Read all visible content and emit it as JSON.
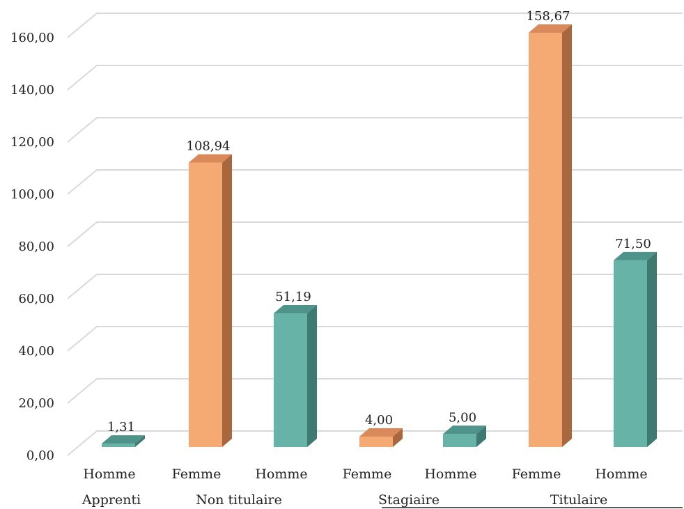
{
  "chart_data": {
    "type": "bar",
    "style": "3d-column",
    "y_ticks": [
      "0,00",
      "20,00",
      "40,00",
      "60,00",
      "80,00",
      "100,00",
      "120,00",
      "140,00",
      "160,00"
    ],
    "ylim": [
      0,
      160
    ],
    "grid": true,
    "groups": [
      {
        "label": "Apprenti",
        "bars": [
          {
            "category": "Homme",
            "value": 1.31,
            "label": "1,31"
          }
        ]
      },
      {
        "label": "Non titulaire",
        "bars": [
          {
            "category": "Femme",
            "value": 108.94,
            "label": "108,94"
          },
          {
            "category": "Homme",
            "value": 51.19,
            "label": "51,19"
          }
        ]
      },
      {
        "label": "Stagiaire",
        "bars": [
          {
            "category": "Femme",
            "value": 4.0,
            "label": "4,00"
          },
          {
            "category": "Homme",
            "value": 5.0,
            "label": "5,00"
          }
        ]
      },
      {
        "label": "Titulaire",
        "bars": [
          {
            "category": "Femme",
            "value": 158.67,
            "label": "158,67"
          },
          {
            "category": "Homme",
            "value": 71.5,
            "label": "71,50"
          }
        ]
      }
    ],
    "colors": {
      "Femme": {
        "front": "#f4aa72",
        "side": "#a8673d",
        "top": "#d9895a"
      },
      "Homme": {
        "front": "#67b3a8",
        "side": "#3f7a72",
        "top": "#4f948b"
      },
      "grid": "#d9d9d9"
    }
  }
}
